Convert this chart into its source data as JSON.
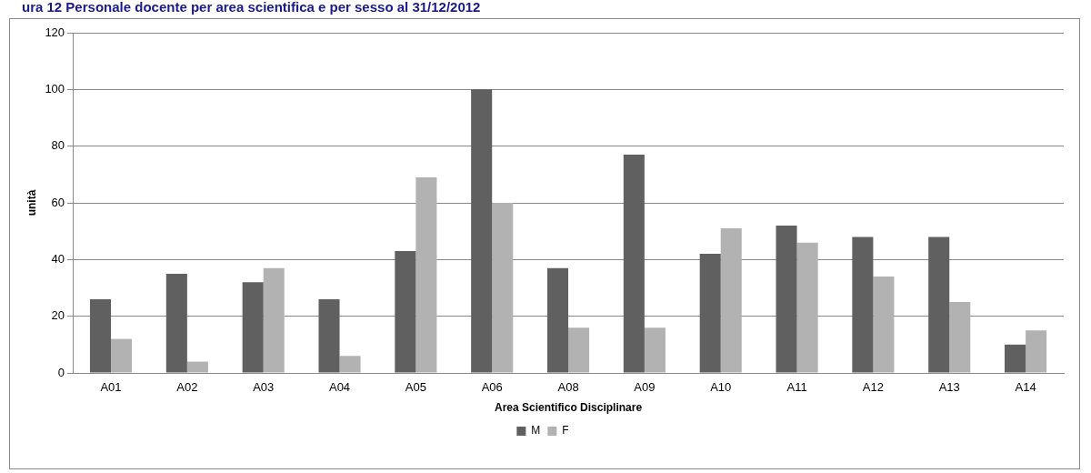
{
  "chart_data": {
    "type": "bar",
    "title": "ura 12 Personale docente per area scientifica e per sesso al 31/12/2012",
    "xlabel": "Area Scientifico Disciplinare",
    "ylabel": "unità",
    "categories": [
      "A01",
      "A02",
      "A03",
      "A04",
      "A05",
      "A06",
      "A08",
      "A09",
      "A10",
      "A11",
      "A12",
      "A13",
      "A14"
    ],
    "series": [
      {
        "name": "M",
        "color": "#606060",
        "values": [
          26,
          35,
          32,
          26,
          43,
          100,
          37,
          77,
          42,
          52,
          48,
          48,
          10
        ]
      },
      {
        "name": "F",
        "color": "#b2b2b2",
        "values": [
          12,
          4,
          37,
          6,
          69,
          60,
          16,
          16,
          51,
          46,
          34,
          25,
          15
        ]
      }
    ],
    "ylim": [
      0,
      120
    ],
    "yticks": [
      0,
      20,
      40,
      60,
      80,
      100,
      120
    ],
    "grid": "y",
    "legend": "bottom"
  }
}
